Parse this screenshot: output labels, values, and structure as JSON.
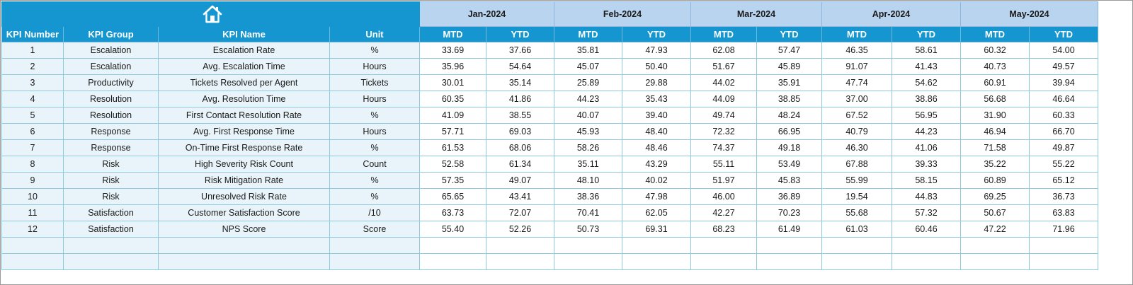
{
  "home_icon": "home-icon",
  "months": [
    {
      "label": "Jan-2024",
      "mtd": "MTD",
      "ytd": "YTD"
    },
    {
      "label": "Feb-2024",
      "mtd": "MTD",
      "ytd": "YTD"
    },
    {
      "label": "Mar-2024",
      "mtd": "MTD",
      "ytd": "YTD"
    },
    {
      "label": "Apr-2024",
      "mtd": "MTD",
      "ytd": "YTD"
    },
    {
      "label": "May-2024",
      "mtd": "MTD",
      "ytd": "YTD"
    }
  ],
  "headers": {
    "kpi_number": "KPI Number",
    "kpi_group": "KPI Group",
    "kpi_name": "KPI Name",
    "unit": "Unit"
  },
  "rows": [
    {
      "num": "1",
      "group": "Escalation",
      "name": "Escalation Rate",
      "unit": "%",
      "values": [
        "33.69",
        "37.66",
        "35.81",
        "47.93",
        "62.08",
        "57.47",
        "46.35",
        "58.61",
        "60.32",
        "54.00"
      ]
    },
    {
      "num": "2",
      "group": "Escalation",
      "name": "Avg. Escalation Time",
      "unit": "Hours",
      "values": [
        "35.96",
        "54.64",
        "45.07",
        "50.40",
        "51.67",
        "45.89",
        "91.07",
        "41.43",
        "40.73",
        "49.57"
      ]
    },
    {
      "num": "3",
      "group": "Productivity",
      "name": "Tickets Resolved per Agent",
      "unit": "Tickets",
      "values": [
        "30.01",
        "35.14",
        "25.89",
        "29.88",
        "44.02",
        "35.91",
        "47.74",
        "54.62",
        "60.91",
        "39.94"
      ]
    },
    {
      "num": "4",
      "group": "Resolution",
      "name": "Avg. Resolution Time",
      "unit": "Hours",
      "values": [
        "60.35",
        "41.86",
        "44.23",
        "35.43",
        "44.09",
        "38.85",
        "37.00",
        "38.86",
        "56.68",
        "46.64"
      ]
    },
    {
      "num": "5",
      "group": "Resolution",
      "name": "First Contact Resolution Rate",
      "unit": "%",
      "values": [
        "41.09",
        "38.55",
        "40.07",
        "39.40",
        "49.74",
        "48.24",
        "67.52",
        "56.95",
        "31.90",
        "60.33"
      ]
    },
    {
      "num": "6",
      "group": "Response",
      "name": "Avg. First Response Time",
      "unit": "Hours",
      "values": [
        "57.71",
        "69.03",
        "45.93",
        "48.40",
        "72.32",
        "66.95",
        "40.79",
        "44.23",
        "46.94",
        "66.70"
      ]
    },
    {
      "num": "7",
      "group": "Response",
      "name": "On-Time First Response Rate",
      "unit": "%",
      "values": [
        "61.53",
        "68.06",
        "58.26",
        "48.46",
        "74.37",
        "49.18",
        "46.30",
        "41.06",
        "71.58",
        "49.87"
      ]
    },
    {
      "num": "8",
      "group": "Risk",
      "name": "High Severity Risk Count",
      "unit": "Count",
      "values": [
        "52.58",
        "61.34",
        "35.11",
        "43.29",
        "55.11",
        "53.49",
        "67.88",
        "39.33",
        "35.22",
        "55.22"
      ]
    },
    {
      "num": "9",
      "group": "Risk",
      "name": "Risk Mitigation Rate",
      "unit": "%",
      "values": [
        "57.35",
        "49.07",
        "48.10",
        "40.02",
        "51.97",
        "45.83",
        "55.99",
        "58.15",
        "60.89",
        "65.12"
      ]
    },
    {
      "num": "10",
      "group": "Risk",
      "name": "Unresolved Risk Rate",
      "unit": "%",
      "values": [
        "65.65",
        "43.41",
        "38.36",
        "47.98",
        "46.00",
        "36.89",
        "19.54",
        "44.83",
        "69.25",
        "36.73"
      ]
    },
    {
      "num": "11",
      "group": "Satisfaction",
      "name": "Customer Satisfaction Score",
      "unit": "/10",
      "values": [
        "63.73",
        "72.07",
        "70.41",
        "62.05",
        "42.27",
        "70.23",
        "55.68",
        "57.32",
        "50.67",
        "63.83"
      ]
    },
    {
      "num": "12",
      "group": "Satisfaction",
      "name": "NPS Score",
      "unit": "Score",
      "values": [
        "55.40",
        "52.26",
        "50.73",
        "69.31",
        "68.23",
        "61.49",
        "61.03",
        "60.46",
        "47.22",
        "71.96"
      ]
    },
    {
      "num": "",
      "group": "",
      "name": "",
      "unit": "",
      "values": [
        "",
        "",
        "",
        "",
        "",
        "",
        "",
        "",
        "",
        ""
      ]
    },
    {
      "num": "",
      "group": "",
      "name": "",
      "unit": "",
      "values": [
        "",
        "",
        "",
        "",
        "",
        "",
        "",
        "",
        "",
        ""
      ]
    }
  ]
}
